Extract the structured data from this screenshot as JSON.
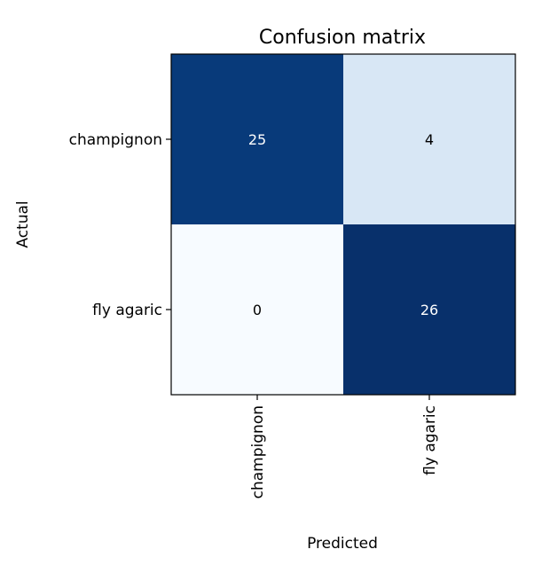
{
  "chart_data": {
    "type": "heatmap",
    "title": "Confusion matrix",
    "xlabel": "Predicted",
    "ylabel": "Actual",
    "row_labels": [
      "champignon",
      "fly agaric"
    ],
    "col_labels": [
      "champignon",
      "fly agaric"
    ],
    "values": [
      [
        25,
        4
      ],
      [
        0,
        26
      ]
    ],
    "colormap": "Blues",
    "colors": {
      "low": "#f7fbff",
      "high": "#08306b",
      "text_dark": "#000000",
      "text_light": "#ffffff"
    }
  }
}
